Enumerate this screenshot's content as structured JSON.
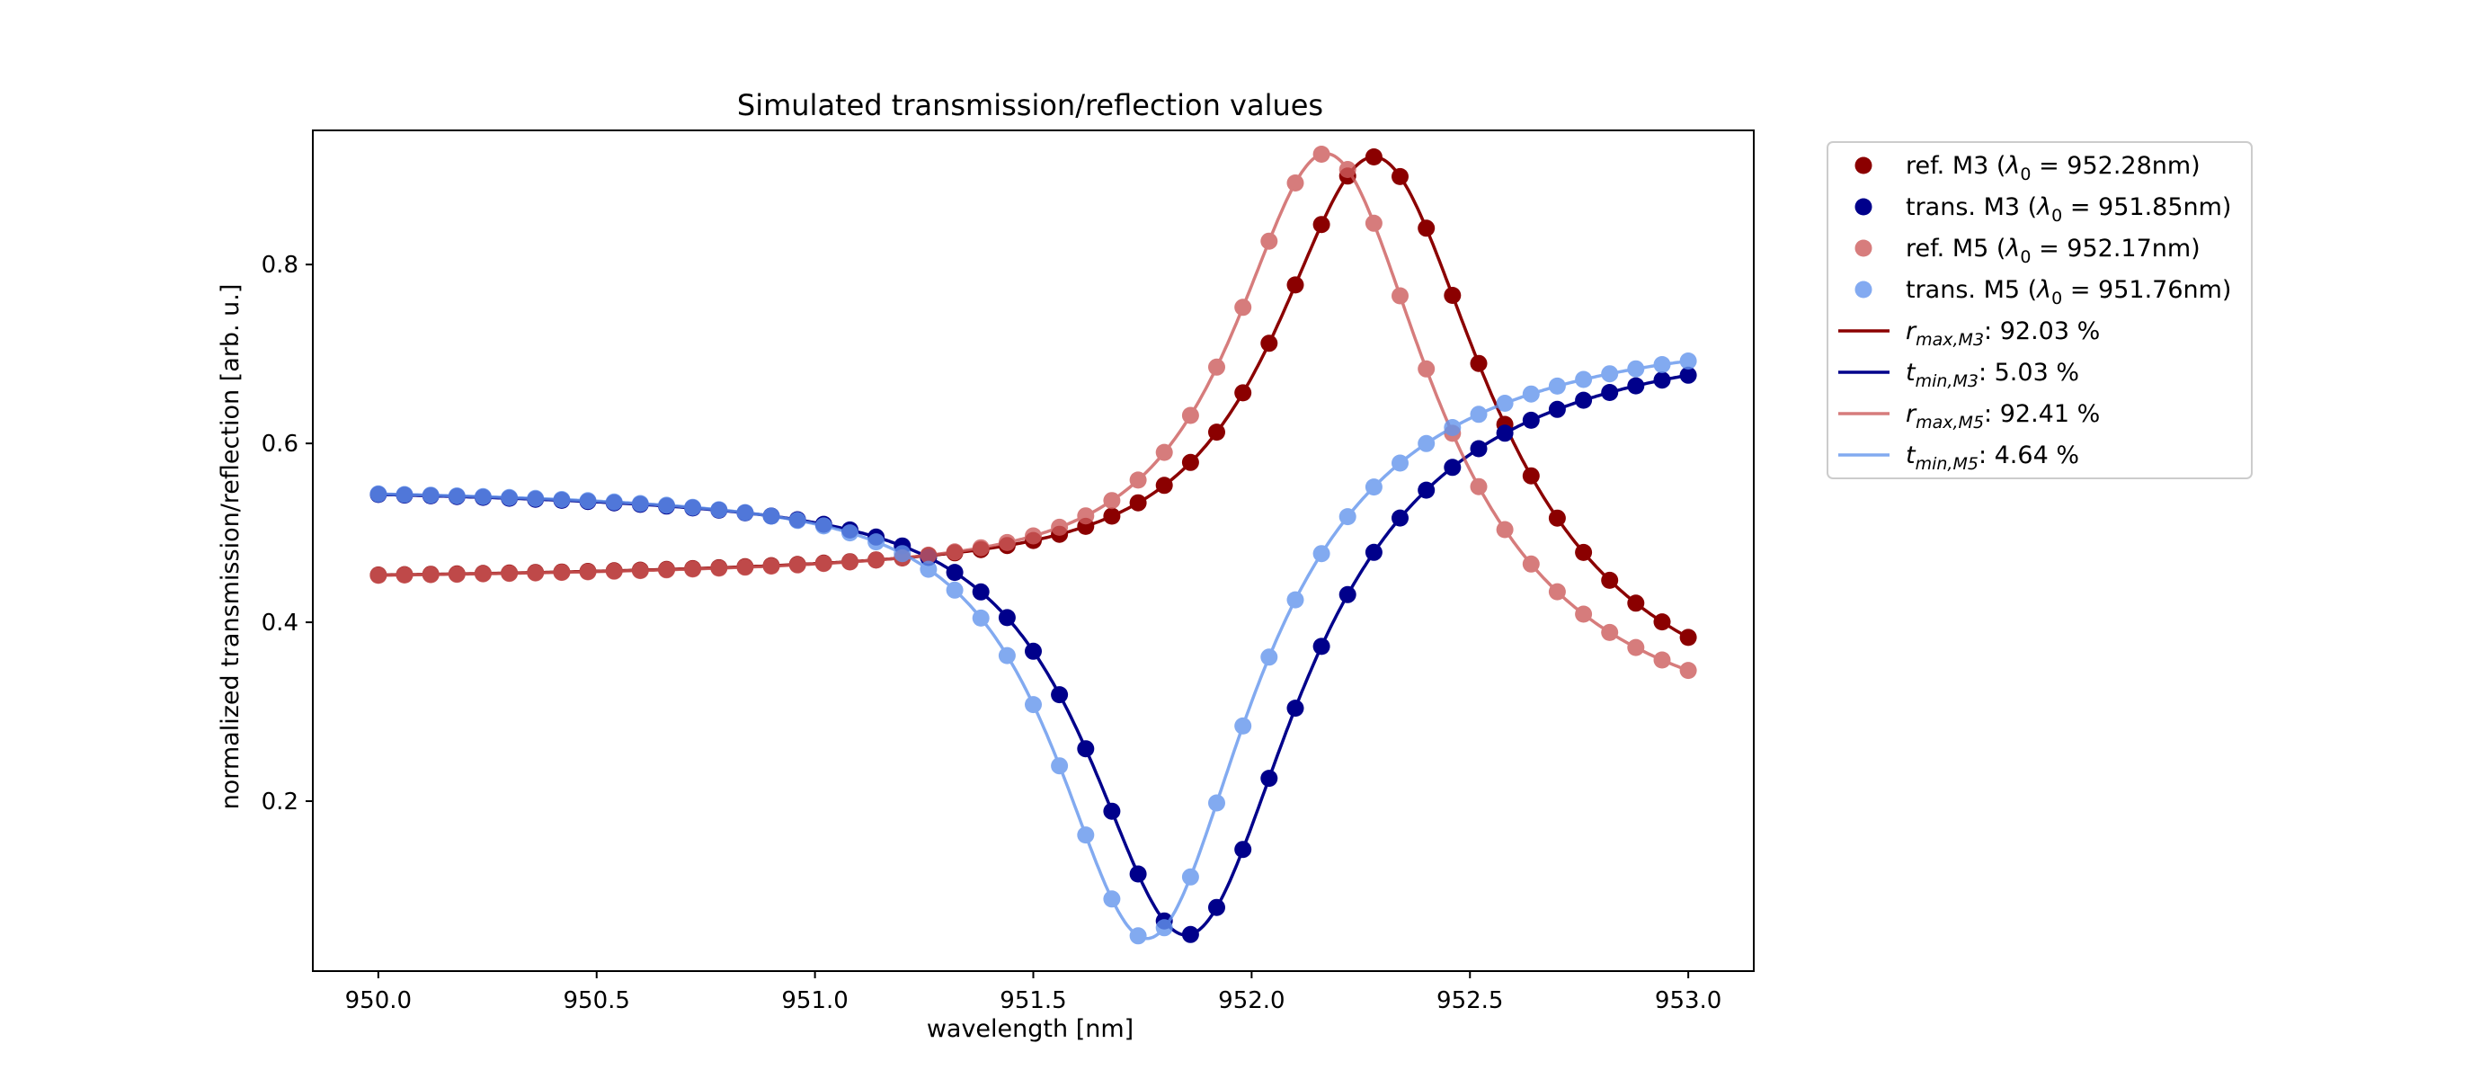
{
  "chart_data": {
    "type": "line",
    "title": "Simulated transmission/reflection values",
    "xlabel": "wavelength [nm]",
    "ylabel": "normalized transmission/reflection [arb. u.]",
    "xlim": [
      949.85,
      953.15
    ],
    "ylim": [
      0.01,
      0.95
    ],
    "xticks": [
      950.0,
      950.5,
      951.0,
      951.5,
      952.0,
      952.5,
      953.0
    ],
    "xtick_labels": [
      "950.0",
      "950.5",
      "951.0",
      "951.5",
      "952.0",
      "952.5",
      "953.0"
    ],
    "yticks": [
      0.2,
      0.4,
      0.6,
      0.8
    ],
    "ytick_labels": [
      "0.2",
      "0.4",
      "0.6",
      "0.8"
    ],
    "grid": false,
    "legend_position": "outside-right",
    "x_range": [
      950.0,
      953.0
    ],
    "x_step": 0.06,
    "series": [
      {
        "name": "ref. M3 (λ0 = 952.28nm)",
        "legend_main": "ref. M3 (",
        "legend_lambda": "λ",
        "legend_sub": "0",
        "legend_rest": " = 952.28nm)",
        "kind": "reflection",
        "lambda0": 952.28,
        "half_width": 0.3,
        "peak": 0.9203,
        "base_low": 0.445,
        "base_high": 0.27,
        "skew": 0.35,
        "color": "#8b0000",
        "alpha": 1.0
      },
      {
        "name": "trans. M3 (λ0 = 951.85nm)",
        "legend_main": "trans. M3 (",
        "legend_lambda": "λ",
        "legend_sub": "0",
        "legend_rest": " = 951.85nm)",
        "kind": "transmission",
        "lambda0": 951.85,
        "half_width": 0.3,
        "dip": 0.0503,
        "base_low": 0.555,
        "base_high": 0.725,
        "skew": 0.35,
        "color": "#00008b",
        "alpha": 1.0
      },
      {
        "name": "ref. M5 (λ0 = 952.17nm)",
        "legend_main": "ref. M5 (",
        "legend_lambda": "λ",
        "legend_sub": "0",
        "legend_rest": " = 952.17nm)",
        "kind": "reflection",
        "lambda0": 952.17,
        "half_width": 0.28,
        "peak": 0.9241,
        "base_low": 0.445,
        "base_high": 0.265,
        "skew": 0.35,
        "color": "#cd5c5c",
        "alpha": 0.8
      },
      {
        "name": "trans. M5 (λ0 = 951.76nm)",
        "legend_main": "trans. M5 (",
        "legend_lambda": "λ",
        "legend_sub": "0",
        "legend_rest": " = 951.76nm)",
        "kind": "transmission",
        "lambda0": 951.76,
        "half_width": 0.28,
        "dip": 0.0464,
        "base_low": 0.555,
        "base_high": 0.73,
        "skew": 0.35,
        "color": "#6495ed",
        "alpha": 0.8
      }
    ],
    "line_legend": [
      {
        "var": "r",
        "sub": "max,M3",
        "value": ": 92.03 %",
        "color": "#8b0000",
        "alpha": 1.0
      },
      {
        "var": "t",
        "sub": "min,M3",
        "value": ": 5.03 %",
        "color": "#00008b",
        "alpha": 1.0
      },
      {
        "var": "r",
        "sub": "max,M5",
        "value": ": 92.41 %",
        "color": "#cd5c5c",
        "alpha": 0.8
      },
      {
        "var": "t",
        "sub": "min,M5",
        "value": ": 4.64 %",
        "color": "#6495ed",
        "alpha": 0.8
      }
    ]
  }
}
